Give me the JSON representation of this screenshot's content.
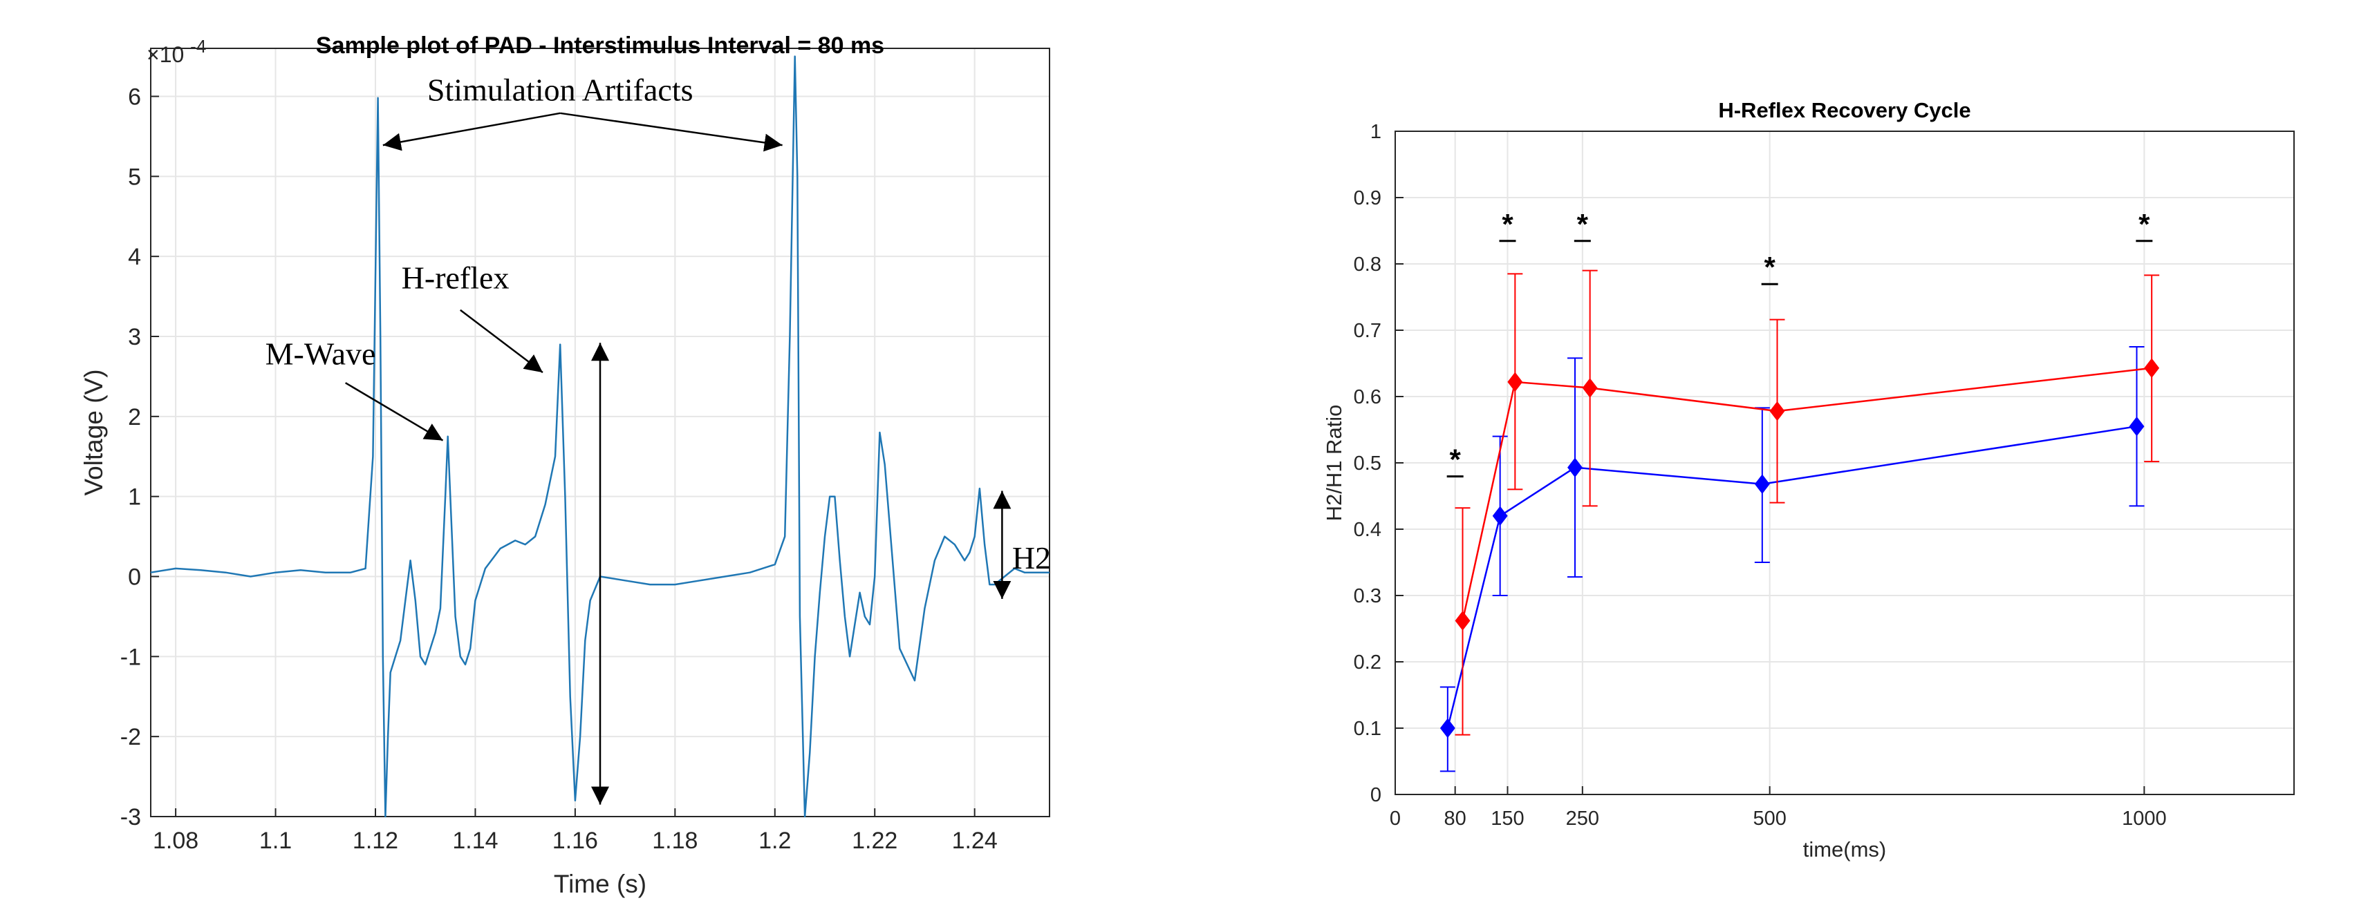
{
  "chart_data": [
    {
      "type": "line",
      "title": "Sample plot of PAD - Interstimulus Interval = 80 ms",
      "xlabel": "Time (s)",
      "ylabel": "Voltage (V)",
      "y_exponent_label": "×10",
      "y_exponent_power": "-4",
      "xlim": [
        1.075,
        1.255
      ],
      "ylim": [
        -3,
        6.6
      ],
      "x_ticks": [
        "1.08",
        "1.1",
        "1.12",
        "1.14",
        "1.16",
        "1.18",
        "1.2",
        "1.22",
        "1.24"
      ],
      "x_tick_values": [
        1.08,
        1.1,
        1.12,
        1.14,
        1.16,
        1.18,
        1.2,
        1.22,
        1.24
      ],
      "y_ticks": [
        "-3",
        "-2",
        "-1",
        "0",
        "1",
        "2",
        "3",
        "4",
        "5",
        "6"
      ],
      "y_tick_values": [
        -3,
        -2,
        -1,
        0,
        1,
        2,
        3,
        4,
        5,
        6
      ],
      "grid": true,
      "line_color": "#1f77b4",
      "series": [
        {
          "x": [
            1.075,
            1.08,
            1.085,
            1.09,
            1.095,
            1.1,
            1.105,
            1.11,
            1.115,
            1.118,
            1.1195,
            1.1205,
            1.121,
            1.1215,
            1.122,
            1.1225,
            1.123,
            1.124,
            1.125,
            1.126,
            1.127,
            1.128,
            1.129,
            1.13,
            1.131,
            1.132,
            1.133,
            1.134,
            1.1345,
            1.135,
            1.136,
            1.137,
            1.138,
            1.139,
            1.14,
            1.142,
            1.145,
            1.148,
            1.15,
            1.152,
            1.154,
            1.156,
            1.157,
            1.158,
            1.159,
            1.16,
            1.161,
            1.162,
            1.163,
            1.165,
            1.17,
            1.175,
            1.18,
            1.185,
            1.19,
            1.195,
            1.2,
            1.202,
            1.203,
            1.204,
            1.2045,
            1.205,
            1.206,
            1.207,
            1.208,
            1.209,
            1.21,
            1.211,
            1.212,
            1.213,
            1.214,
            1.215,
            1.216,
            1.217,
            1.218,
            1.219,
            1.22,
            1.221,
            1.222,
            1.225,
            1.228,
            1.23,
            1.232,
            1.234,
            1.236,
            1.238,
            1.239,
            1.24,
            1.241,
            1.242,
            1.243,
            1.244,
            1.246,
            1.248,
            1.25,
            1.255
          ],
          "y": [
            0.05,
            0.1,
            0.08,
            0.05,
            0.0,
            0.05,
            0.08,
            0.05,
            0.05,
            0.1,
            1.5,
            5.98,
            3.0,
            -1.0,
            -3.0,
            -2.0,
            -1.2,
            -1.0,
            -0.8,
            -0.3,
            0.2,
            -0.3,
            -1.0,
            -1.1,
            -0.9,
            -0.7,
            -0.4,
            1.0,
            1.75,
            1.0,
            -0.5,
            -1.0,
            -1.1,
            -0.9,
            -0.3,
            0.1,
            0.35,
            0.45,
            0.4,
            0.5,
            0.9,
            1.5,
            2.9,
            1.0,
            -1.5,
            -2.8,
            -2.0,
            -0.8,
            -0.3,
            0.0,
            -0.05,
            -0.1,
            -0.1,
            -0.05,
            0.0,
            0.05,
            0.15,
            0.5,
            3.0,
            6.5,
            5.0,
            -0.5,
            -3.0,
            -2.2,
            -1.0,
            -0.2,
            0.5,
            1.0,
            1.0,
            0.2,
            -0.5,
            -1.0,
            -0.6,
            -0.2,
            -0.5,
            -0.6,
            0.0,
            1.8,
            1.4,
            -0.9,
            -1.3,
            -0.4,
            0.2,
            0.5,
            0.4,
            0.2,
            0.3,
            0.5,
            1.1,
            0.4,
            -0.1,
            -0.1,
            0.0,
            0.1,
            0.05,
            0.05
          ]
        }
      ],
      "annotations": [
        {
          "text": "Stimulation Artifacts",
          "x": 1.157,
          "y": 5.95
        },
        {
          "text": "H-reflex",
          "x": 1.136,
          "y": 3.6
        },
        {
          "text": "M-Wave",
          "x": 1.109,
          "y": 2.65
        },
        {
          "text": "H2",
          "x": 1.2475,
          "y": 0.1
        }
      ]
    },
    {
      "type": "line",
      "title": "H-Reflex Recovery Cycle",
      "xlabel": "time(ms)",
      "ylabel": "H2/H1 Ratio",
      "xlim": [
        0,
        1200
      ],
      "ylim": [
        0,
        1
      ],
      "x_ticks": [
        "0",
        "80",
        "150",
        "250",
        "500",
        "1000"
      ],
      "x_tick_values": [
        0,
        80,
        150,
        250,
        500,
        1000
      ],
      "y_ticks": [
        "0",
        "0.1",
        "0.2",
        "0.3",
        "0.4",
        "0.5",
        "0.6",
        "0.7",
        "0.8",
        "0.9",
        "1"
      ],
      "y_tick_values": [
        0,
        0.1,
        0.2,
        0.3,
        0.4,
        0.5,
        0.6,
        0.7,
        0.8,
        0.9,
        1
      ],
      "grid": true,
      "series": [
        {
          "color": "#0000ff",
          "x": [
            70,
            140,
            240,
            490,
            990
          ],
          "y": [
            0.1,
            0.42,
            0.493,
            0.468,
            0.555
          ],
          "err_low": [
            0.035,
            0.3,
            0.328,
            0.35,
            0.435
          ],
          "err_high": [
            0.162,
            0.54,
            0.658,
            0.583,
            0.675
          ]
        },
        {
          "color": "#ff0000",
          "x": [
            90,
            160,
            260,
            510,
            1010
          ],
          "y": [
            0.262,
            0.622,
            0.613,
            0.578,
            0.643
          ],
          "err_low": [
            0.09,
            0.46,
            0.435,
            0.44,
            0.502
          ],
          "err_high": [
            0.432,
            0.785,
            0.79,
            0.716,
            0.783
          ]
        }
      ],
      "significance_markers": [
        {
          "text": "*",
          "x": 80,
          "y": 0.49
        },
        {
          "text": "*",
          "x": 150,
          "y": 0.845
        },
        {
          "text": "*",
          "x": 250,
          "y": 0.845
        },
        {
          "text": "*",
          "x": 500,
          "y": 0.78
        },
        {
          "text": "*",
          "x": 1000,
          "y": 0.845
        }
      ]
    }
  ]
}
